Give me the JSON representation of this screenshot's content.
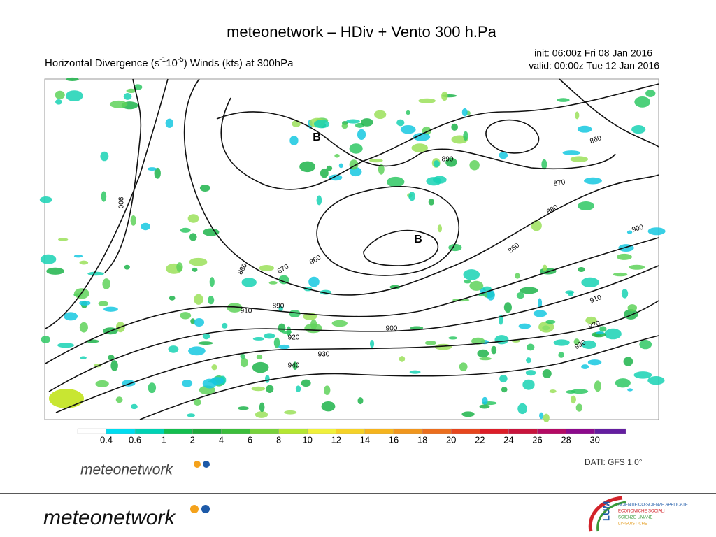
{
  "slide": {
    "title": "meteonetwork – HDiv + Vento 300 h.Pa"
  },
  "map": {
    "header": [
      "Horizontal Divergence (s",
      "-1",
      "10",
      "-5",
      ") Winds (kts) at 300hPa"
    ],
    "init": "init: 06:00z Fri 08 Jan 2016",
    "valid": "valid: 00:00z Tue 12 Jan 2016",
    "pressure_lows": [
      "B",
      "B"
    ],
    "contour_labels": [
      "900",
      "880",
      "870",
      "860",
      "890",
      "910",
      "900",
      "920",
      "930",
      "940",
      "890",
      "870",
      "860",
      "880",
      "900",
      "860",
      "910",
      "920",
      "930"
    ],
    "colorbar": [
      "0.4",
      "0.6",
      "1",
      "2",
      "4",
      "6",
      "8",
      "10",
      "12",
      "14",
      "16",
      "18",
      "20",
      "22",
      "24",
      "26",
      "28",
      "30"
    ],
    "source": "DATI: GFS 1.0°"
  },
  "logos": {
    "map_logo": "meteonetwork",
    "footer_logo": "meteonetwork",
    "partner": {
      "mark": "LUM",
      "lines": [
        "SCIENTIFICO-SCIENZE APPLICATE",
        "ECONOMICHE SOCIALI",
        "SCIENZE UMANE",
        "LINGUISTICHE"
      ]
    }
  }
}
